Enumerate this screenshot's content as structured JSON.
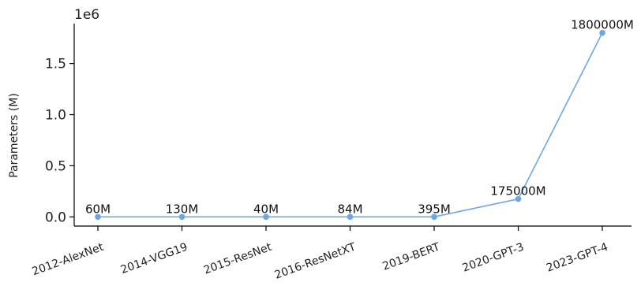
{
  "chart_data": {
    "type": "line",
    "categories": [
      "2012-AlexNet",
      "2014-VGG19",
      "2015-ResNet",
      "2016-ResNetXT",
      "2019-BERT",
      "2020-GPT-3",
      "2023-GPT-4"
    ],
    "values": [
      60,
      130,
      40,
      84,
      395,
      175000,
      1800000
    ],
    "data_labels": [
      "60M",
      "130M",
      "40M",
      "84M",
      "395M",
      "175000M",
      "1800000M"
    ],
    "ylabel": "Parameters (M)",
    "y_scale_label": "1e6",
    "ylim": [
      -90000,
      1890000
    ],
    "yticks": [
      0,
      500000,
      1000000,
      1500000
    ],
    "ytick_labels": [
      "0.0",
      "0.5",
      "1.0",
      "1.5"
    ],
    "grid": false,
    "line_color": "#6aa6e8",
    "marker_color": "#6aa6e8"
  }
}
